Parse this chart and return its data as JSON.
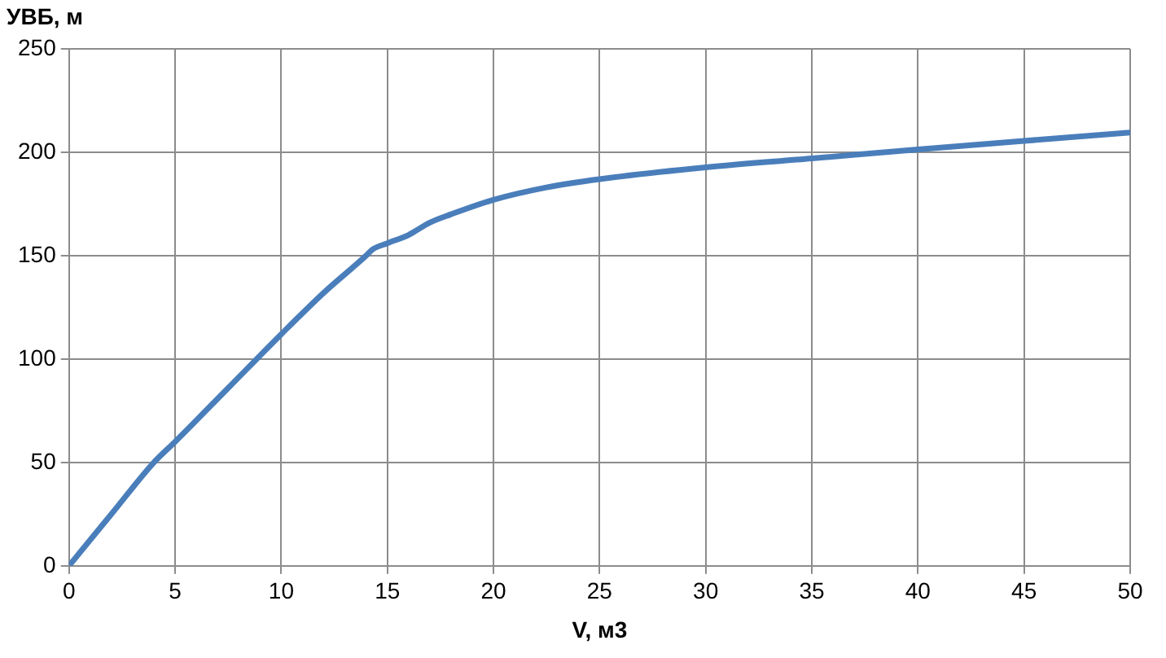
{
  "chart_data": {
    "type": "line",
    "xlabel": "V, м3",
    "ylabel": "УВБ, м",
    "x": [
      0,
      2,
      4,
      5,
      7.5,
      10,
      12,
      14,
      14.3,
      15,
      16,
      17,
      18,
      20,
      22.5,
      25,
      30,
      35,
      40,
      45,
      50
    ],
    "series": [
      {
        "color": "#4a7ebb",
        "values": [
          0,
          25,
          50,
          60,
          86,
          112,
          132,
          150,
          153,
          156,
          160,
          166,
          170,
          177,
          183,
          187,
          192.7,
          197,
          201.4,
          205.5,
          209.5
        ]
      }
    ],
    "xlim": [
      0,
      50
    ],
    "xticks": [
      0,
      5,
      10,
      15,
      20,
      25,
      30,
      35,
      40,
      45,
      50
    ],
    "ylim": [
      0,
      250
    ],
    "yticks": [
      0,
      50,
      100,
      150,
      200,
      250
    ],
    "grid": true,
    "legend": false,
    "marker": "none",
    "line_style": "solid"
  }
}
